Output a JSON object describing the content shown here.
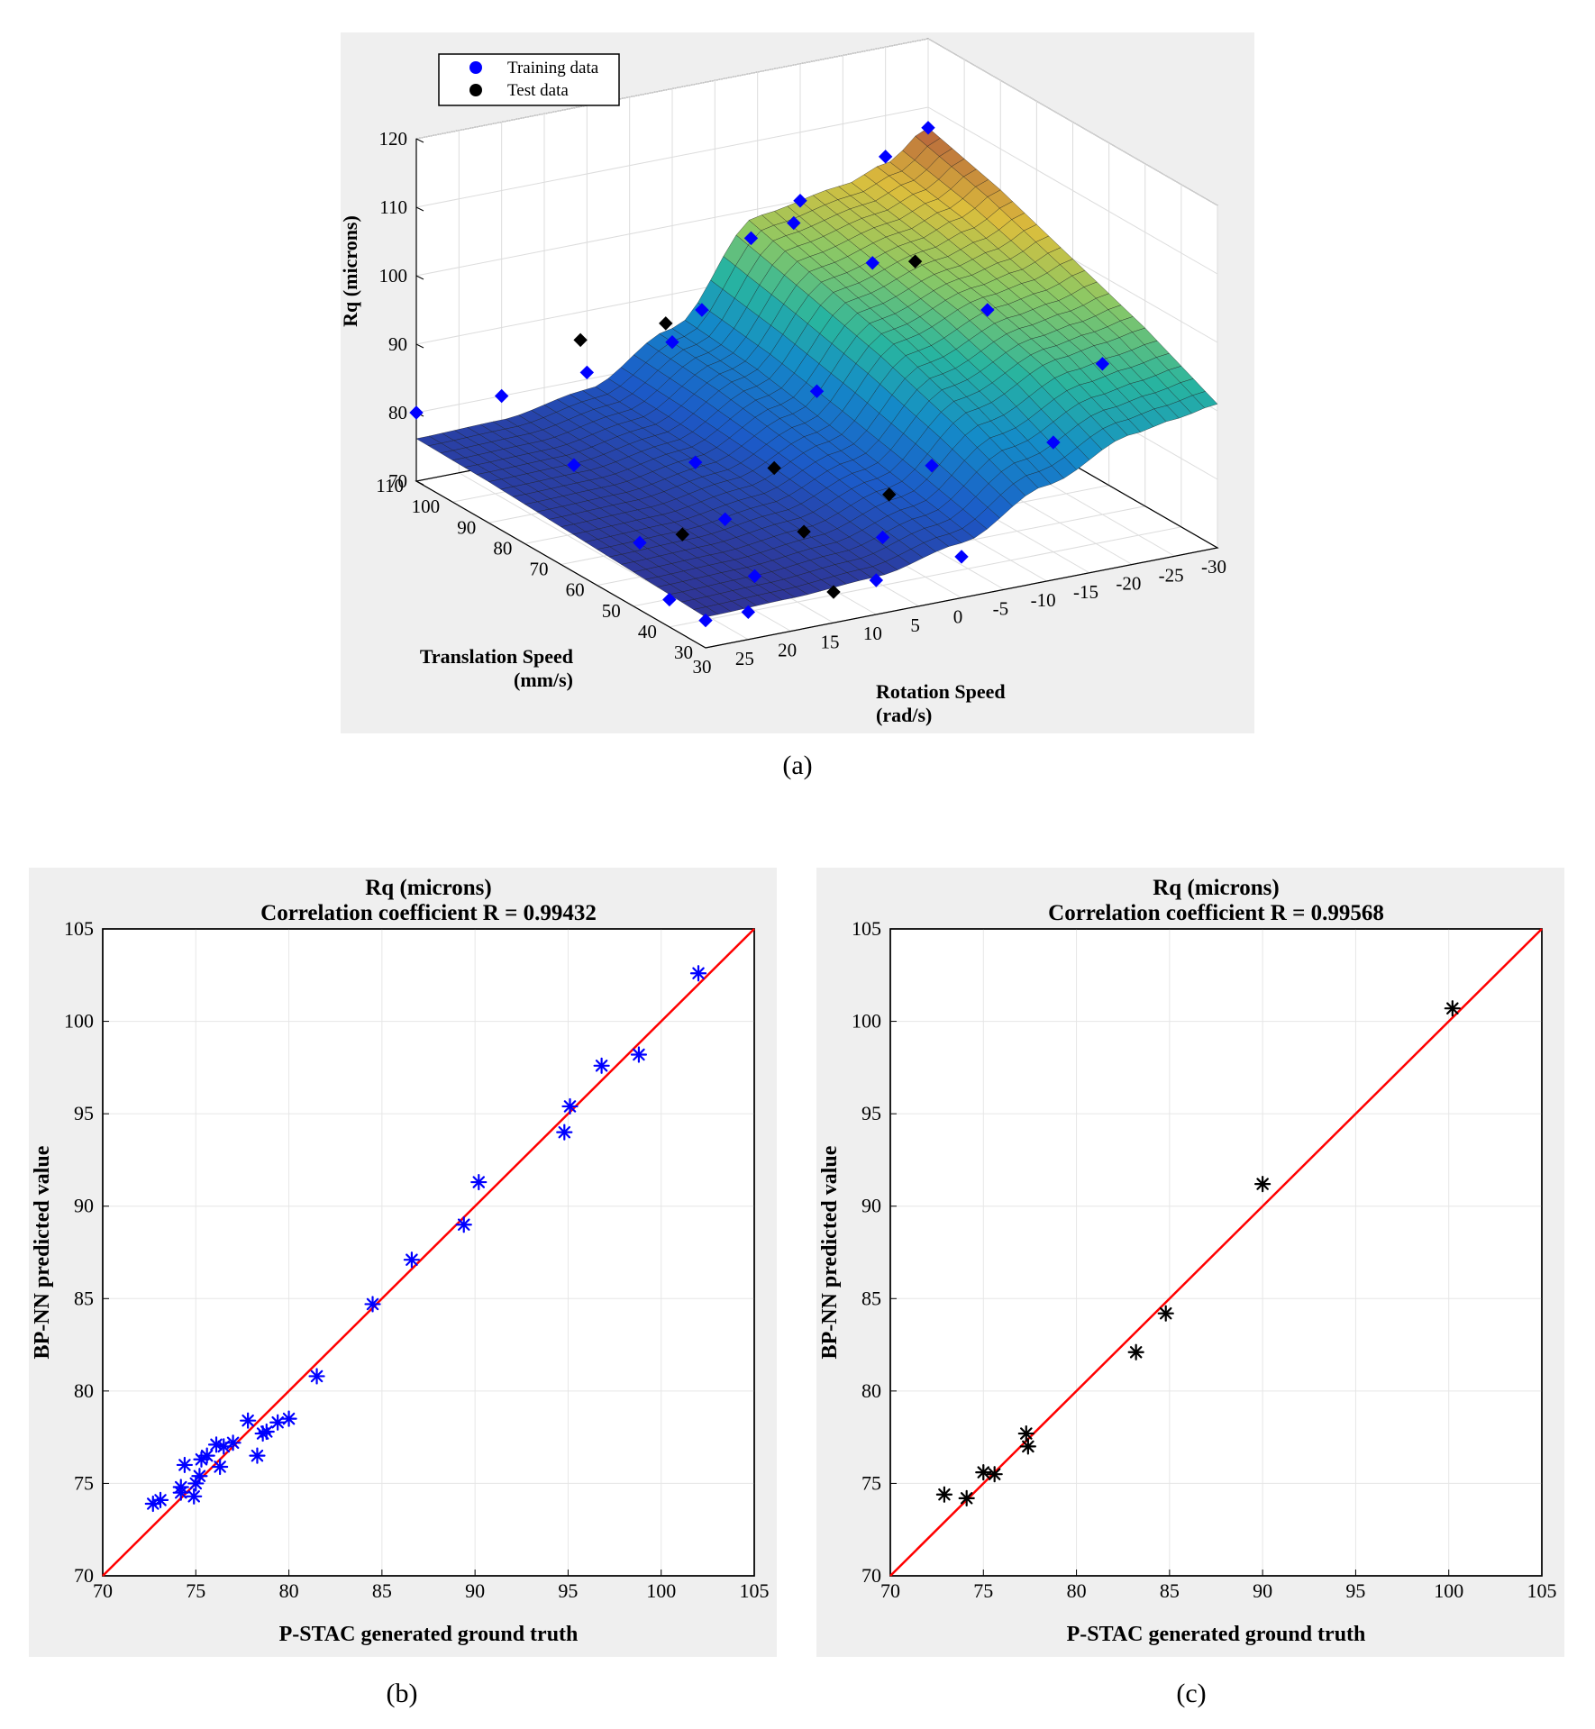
{
  "captions": {
    "a": "(a)",
    "b": "(b)",
    "c": "(c)"
  },
  "colors": {
    "training": "#0000ff",
    "test": "#000000",
    "fit_line": "#ff0000",
    "panel_bg": "#efefef"
  },
  "chart_data": [
    {
      "id": "a",
      "type": "surface3d",
      "title": "",
      "zlabel": "Rq (microns)",
      "xlabel_lines": [
        "Rotation Speed",
        "(rad/s)"
      ],
      "ylabel_lines": [
        "Translation Speed",
        "(mm/s)"
      ],
      "xlim": [
        -30,
        30
      ],
      "ylim": [
        30,
        110
      ],
      "zlim": [
        70,
        120
      ],
      "xticks": [
        30,
        25,
        20,
        15,
        10,
        5,
        0,
        -5,
        -10,
        -15,
        -20,
        -25,
        -30
      ],
      "yticks": [
        110,
        100,
        90,
        80,
        70,
        60,
        50,
        40,
        30
      ],
      "zticks": [
        70,
        80,
        90,
        100,
        110,
        120
      ],
      "legend": {
        "placement": "top-left",
        "entries": [
          "Training data",
          "Test data"
        ]
      },
      "surface_rows": [
        {
          "y": 110,
          "points": [
            [
              30,
              76.2
            ],
            [
              20,
              76.5
            ],
            [
              10,
              78.5
            ],
            [
              0,
              85
            ],
            [
              -10,
              99
            ],
            [
              -20,
              101
            ],
            [
              -25,
              103
            ],
            [
              -30,
              107
            ]
          ]
        },
        {
          "y": 90,
          "points": [
            [
              30,
              76
            ],
            [
              20,
              76.2
            ],
            [
              10,
              78
            ],
            [
              0,
              84
            ],
            [
              -10,
              96
            ],
            [
              -20,
              99
            ],
            [
              -25,
              101
            ],
            [
              -30,
              104
            ]
          ]
        },
        {
          "y": 70,
          "points": [
            [
              30,
              75.5
            ],
            [
              20,
              75.8
            ],
            [
              10,
              77.5
            ],
            [
              0,
              82
            ],
            [
              -10,
              93
            ],
            [
              -20,
              97
            ],
            [
              -25,
              98
            ],
            [
              -30,
              100
            ]
          ]
        },
        {
          "y": 50,
          "points": [
            [
              30,
              75
            ],
            [
              20,
              75.3
            ],
            [
              10,
              76.5
            ],
            [
              0,
              80
            ],
            [
              -10,
              89
            ],
            [
              -20,
              94
            ],
            [
              -25,
              95
            ],
            [
              -30,
              96
            ]
          ]
        },
        {
          "y": 30,
          "points": [
            [
              30,
              74.5
            ],
            [
              20,
              74.8
            ],
            [
              10,
              75.5
            ],
            [
              0,
              78
            ],
            [
              -10,
              84
            ],
            [
              -20,
              89
            ],
            [
              -25,
              90
            ],
            [
              -30,
              91
            ]
          ]
        }
      ],
      "training_points": [
        {
          "x": 30,
          "y": 110,
          "z": 80
        },
        {
          "x": 20,
          "y": 110,
          "z": 80
        },
        {
          "x": 10,
          "y": 110,
          "z": 81
        },
        {
          "x": 0,
          "y": 110,
          "z": 83
        },
        {
          "x": -15,
          "y": 110,
          "z": 100
        },
        {
          "x": -25,
          "y": 110,
          "z": 104
        },
        {
          "x": -30,
          "y": 110,
          "z": 107
        },
        {
          "x": -5,
          "y": 100,
          "z": 100
        },
        {
          "x": -10,
          "y": 100,
          "z": 101
        },
        {
          "x": 5,
          "y": 90,
          "z": 95
        },
        {
          "x": -15,
          "y": 90,
          "z": 97
        },
        {
          "x": 20,
          "y": 90,
          "z": 76
        },
        {
          "x": 10,
          "y": 80,
          "z": 77
        },
        {
          "x": -20,
          "y": 70,
          "z": 95
        },
        {
          "x": 0,
          "y": 70,
          "z": 88
        },
        {
          "x": 25,
          "y": 60,
          "z": 75
        },
        {
          "x": 15,
          "y": 60,
          "z": 76
        },
        {
          "x": -25,
          "y": 50,
          "z": 92
        },
        {
          "x": -5,
          "y": 50,
          "z": 82
        },
        {
          "x": 30,
          "y": 40,
          "z": 74
        },
        {
          "x": 20,
          "y": 40,
          "z": 75
        },
        {
          "x": 5,
          "y": 40,
          "z": 77
        },
        {
          "x": -15,
          "y": 40,
          "z": 86
        },
        {
          "x": 30,
          "y": 30,
          "z": 74
        },
        {
          "x": 25,
          "y": 30,
          "z": 74
        },
        {
          "x": 10,
          "y": 30,
          "z": 75
        },
        {
          "x": 0,
          "y": 30,
          "z": 76
        }
      ],
      "test_points": [
        {
          "x": 15,
          "y": 100,
          "z": 90
        },
        {
          "x": 5,
          "y": 100,
          "z": 90
        },
        {
          "x": -20,
          "y": 90,
          "z": 96
        },
        {
          "x": 5,
          "y": 70,
          "z": 78
        },
        {
          "x": 20,
          "y": 60,
          "z": 75
        },
        {
          "x": 10,
          "y": 50,
          "z": 76
        },
        {
          "x": 0,
          "y": 50,
          "z": 79
        },
        {
          "x": 15,
          "y": 30,
          "z": 74.5
        }
      ]
    },
    {
      "id": "b",
      "type": "scatter",
      "title_lines": [
        "Rq (microns)",
        "Correlation coefficient R = 0.99432"
      ],
      "xlabel": "P-STAC generated ground truth",
      "ylabel": "BP-NN predicted value",
      "xlim": [
        70,
        105
      ],
      "ylim": [
        70,
        105
      ],
      "xticks": [
        70,
        75,
        80,
        85,
        90,
        95,
        100,
        105
      ],
      "yticks": [
        70,
        75,
        80,
        85,
        90,
        95,
        100,
        105
      ],
      "grid": true,
      "marker": "asterisk",
      "fit_line": [
        [
          70,
          70
        ],
        [
          105,
          105
        ]
      ],
      "points": [
        [
          72.7,
          73.9
        ],
        [
          73.1,
          74.1
        ],
        [
          74.2,
          74.5
        ],
        [
          74.2,
          74.8
        ],
        [
          74.4,
          76.0
        ],
        [
          74.9,
          74.3
        ],
        [
          75.0,
          75.0
        ],
        [
          75.2,
          75.4
        ],
        [
          75.3,
          76.3
        ],
        [
          75.6,
          76.5
        ],
        [
          76.1,
          77.1
        ],
        [
          76.3,
          75.9
        ],
        [
          76.5,
          77.0
        ],
        [
          77.0,
          77.2
        ],
        [
          77.8,
          78.4
        ],
        [
          78.3,
          76.5
        ],
        [
          78.6,
          77.7
        ],
        [
          78.8,
          77.8
        ],
        [
          79.4,
          78.3
        ],
        [
          80.0,
          78.5
        ],
        [
          81.5,
          80.8
        ],
        [
          84.5,
          84.7
        ],
        [
          86.6,
          87.1
        ],
        [
          89.4,
          89.0
        ],
        [
          90.2,
          91.3
        ],
        [
          94.8,
          94.0
        ],
        [
          95.1,
          95.4
        ],
        [
          96.8,
          97.6
        ],
        [
          98.8,
          98.2
        ],
        [
          102.0,
          102.6
        ]
      ]
    },
    {
      "id": "c",
      "type": "scatter",
      "title_lines": [
        "Rq (microns)",
        "Correlation coefficient R = 0.99568"
      ],
      "xlabel": "P-STAC generated ground truth",
      "ylabel": "BP-NN predicted value",
      "xlim": [
        70,
        105
      ],
      "ylim": [
        70,
        105
      ],
      "xticks": [
        70,
        75,
        80,
        85,
        90,
        95,
        100,
        105
      ],
      "yticks": [
        70,
        75,
        80,
        85,
        90,
        95,
        100,
        105
      ],
      "grid": true,
      "marker": "asterisk",
      "fit_line": [
        [
          70,
          70
        ],
        [
          105,
          105
        ]
      ],
      "points": [
        [
          72.9,
          74.4
        ],
        [
          74.1,
          74.2
        ],
        [
          75.0,
          75.6
        ],
        [
          75.6,
          75.5
        ],
        [
          77.3,
          77.7
        ],
        [
          77.4,
          77.0
        ],
        [
          83.2,
          82.1
        ],
        [
          84.8,
          84.2
        ],
        [
          90.0,
          91.2
        ],
        [
          100.2,
          100.7
        ]
      ]
    }
  ]
}
